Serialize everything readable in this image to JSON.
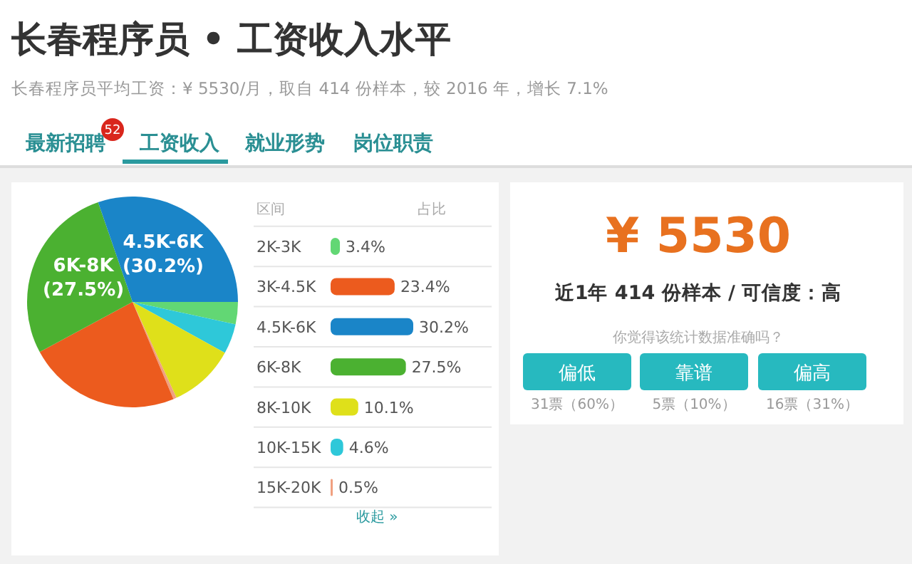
{
  "chart_data": [
    {
      "type": "pie",
      "title": "长春程序员 • 工资收入水平",
      "subtitle": "长春程序员平均工资：¥ 5530/月，取自 414 份样本，较 2016 年，增长 7.1%",
      "categories": [
        null,
        null,
        null,
        null,
        null,
        "6K-8K",
        "4.5K-6K"
      ],
      "values": [
        3.4,
        4.6,
        10.1,
        0.5,
        23.4,
        27.5,
        30.2
      ],
      "colors": [
        "#62d774",
        "#2ec8d9",
        "#dfe01a",
        "#f0a080",
        "#ec5b1e",
        "#4bb131",
        "#1a85c8"
      ],
      "value_labels": [
        null,
        null,
        null,
        null,
        null,
        "(27.5%)",
        "(30.2%)"
      ]
    },
    {
      "type": "bar",
      "orientation": "horizontal",
      "ylabel": "区间",
      "xlabel": "占比",
      "categories": [
        "2K-3K",
        "3K-4.5K",
        "4.5K-6K",
        "6K-8K",
        "8K-10K",
        "10K-15K",
        "15K-20K"
      ],
      "values": [
        3.4,
        23.4,
        30.2,
        27.5,
        10.1,
        4.6,
        0.5
      ],
      "colors": [
        "#62d774",
        "#ec5b1e",
        "#1a85c8",
        "#4bb131",
        "#dfe01a",
        "#2ec8d9",
        "#f0a080"
      ],
      "value_labels": [
        "3.4%",
        "23.4%",
        "30.2%",
        "27.5%",
        "10.1%",
        "4.6%",
        "0.5%"
      ],
      "annotations": [
        "收起 »"
      ]
    },
    {
      "type": "other",
      "annotations": [
        "¥ 5530",
        "近1年 414 份样本 / 可信度：高",
        "你觉得该统计数据准确吗？",
        "偏低",
        "靠谱",
        "偏高",
        "31票（60%）",
        "5票（10%）",
        "16票（31%）",
        "最新招聘",
        "52",
        "工资收入",
        "就业形势",
        "岗位职责"
      ]
    }
  ]
}
